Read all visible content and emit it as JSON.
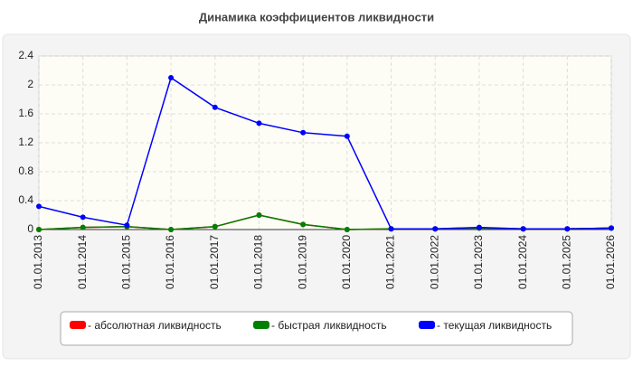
{
  "chart_data": {
    "type": "line",
    "title": "Динамика коэффициентов ликвидности",
    "categories": [
      "01.01.2013",
      "01.01.2014",
      "01.01.2015",
      "01.01.2016",
      "01.01.2017",
      "01.01.2018",
      "01.01.2019",
      "01.01.2020",
      "01.01.2021",
      "01.01.2022",
      "01.01.2023",
      "01.01.2024",
      "01.01.2025",
      "01.01.2026"
    ],
    "series": [
      {
        "name": "- абсолютная ликвидность",
        "color": "#ff0000",
        "values": [
          0,
          0.03,
          0.04,
          0,
          0.04,
          0.2,
          0.07,
          0,
          0.01,
          0.01,
          0.02,
          0.01,
          0.01,
          0.02
        ]
      },
      {
        "name": "- быстрая ликвидность",
        "color": "#008000",
        "values": [
          0,
          0.03,
          0.04,
          0,
          0.04,
          0.2,
          0.07,
          0,
          0.01,
          0.01,
          0.02,
          0.01,
          0.01,
          0.02
        ]
      },
      {
        "name": "- текущая ликвидность",
        "color": "#0000ff",
        "values": [
          0.32,
          0.17,
          0.06,
          2.1,
          1.69,
          1.47,
          1.34,
          1.29,
          0.01,
          0.01,
          0.03,
          0.01,
          0.01,
          0.02
        ]
      }
    ],
    "ylim": [
      0,
      2.4
    ],
    "yticks": [
      0,
      0.4,
      0.8,
      1.2,
      1.6,
      2,
      2.4
    ],
    "grid": true,
    "legend": "bottom"
  }
}
